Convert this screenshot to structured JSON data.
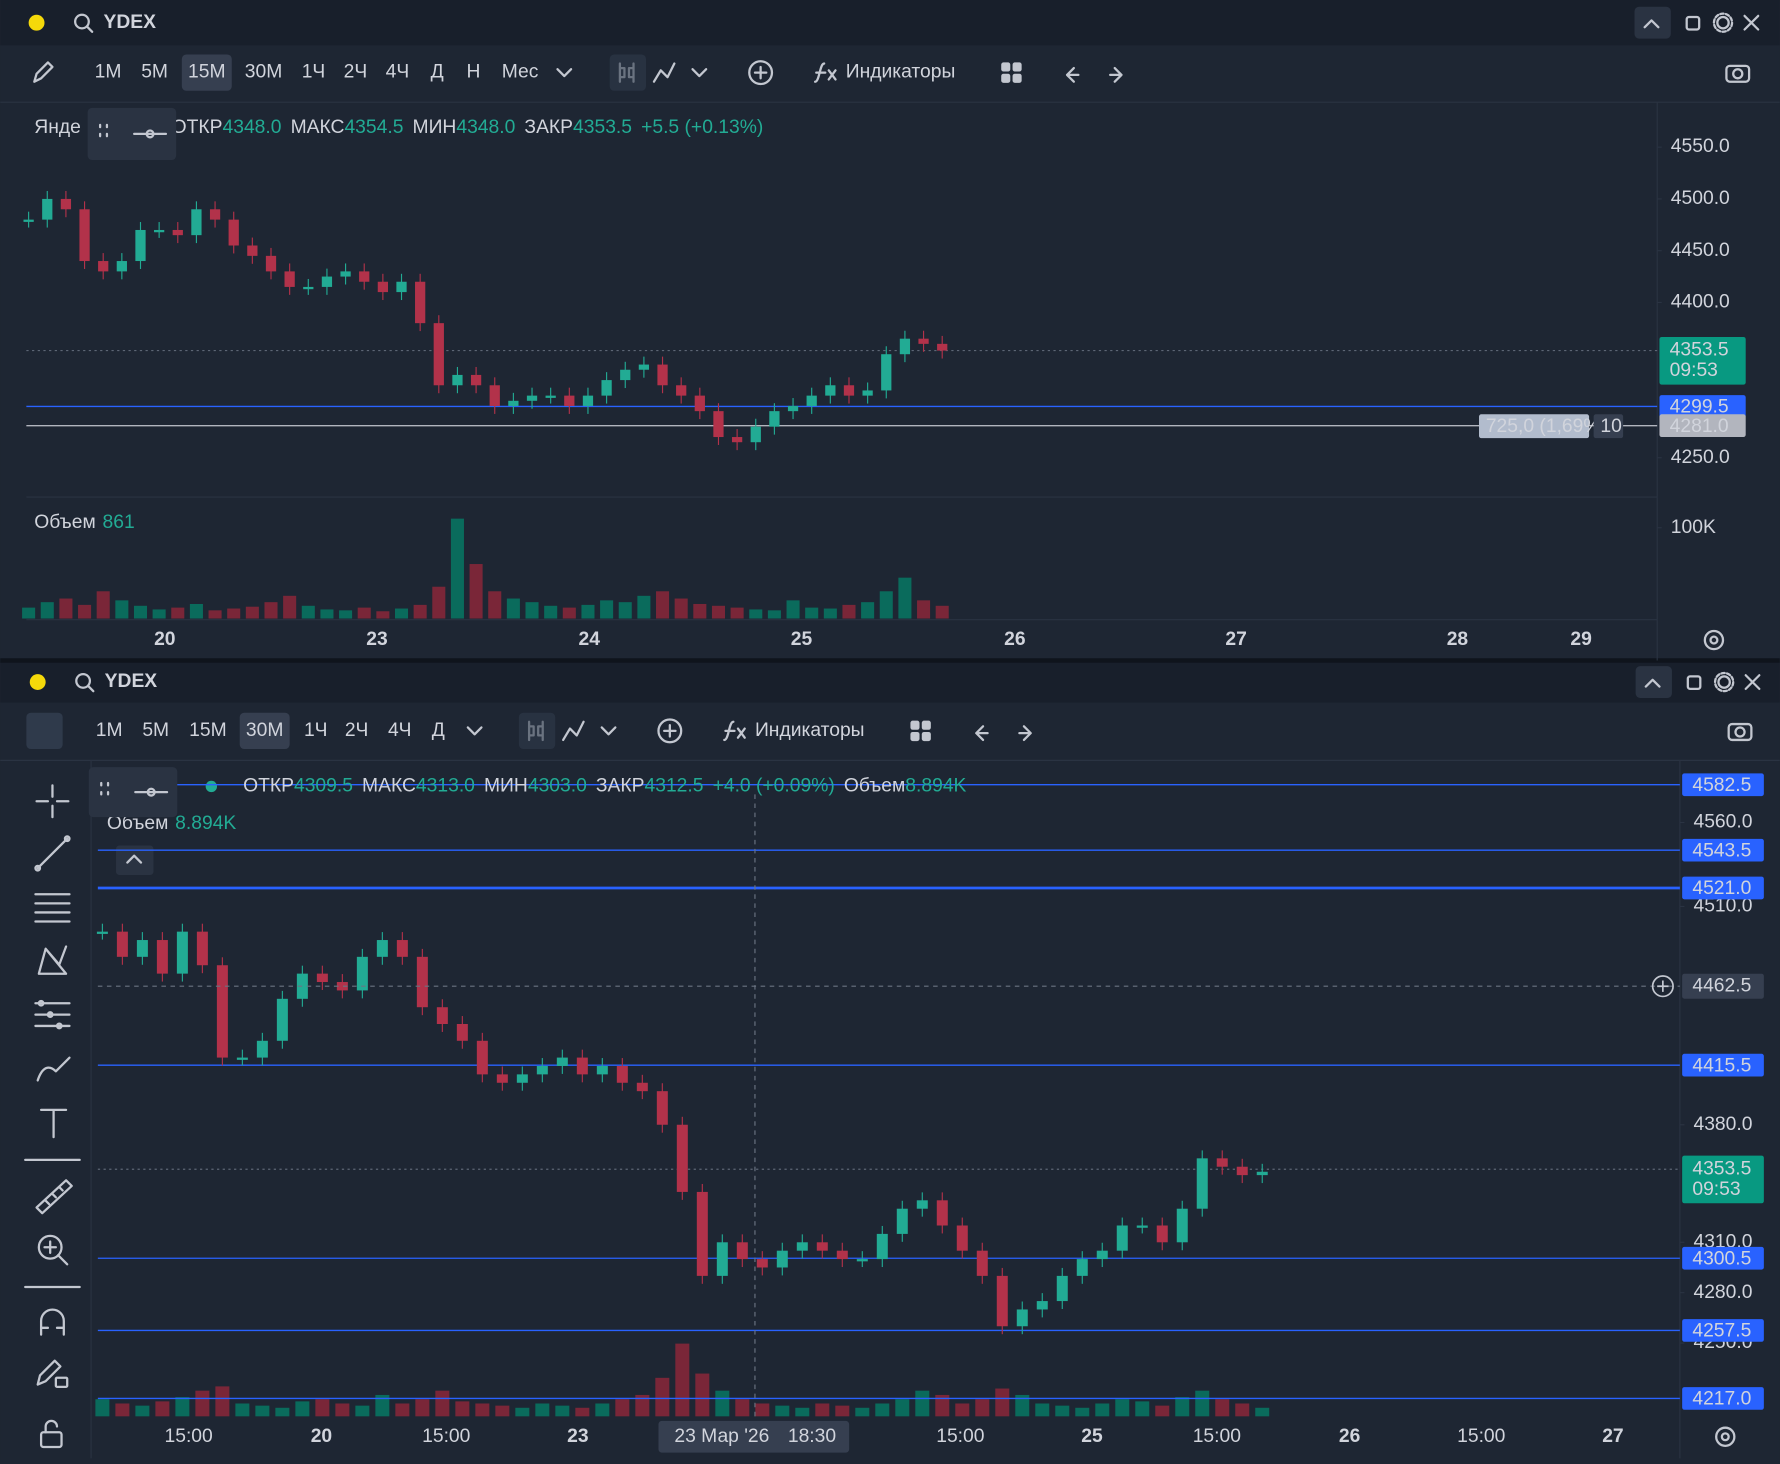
{
  "panels": [
    {
      "symbol": "YDEX",
      "timeframes": [
        "1М",
        "5М",
        "15М",
        "30М",
        "1Ч",
        "2Ч",
        "4Ч",
        "Д",
        "Н",
        "Мес"
      ],
      "active_timeframe": "15М",
      "indicators": "Индикаторы",
      "legend_name": "Янде",
      "ohlc": [
        {
          "label": "ОТКР",
          "value": "4348.0"
        },
        {
          "label": "МАКС",
          "value": "4354.5"
        },
        {
          "label": "МИН",
          "value": "4348.0"
        },
        {
          "label": "ЗАКР",
          "value": "4353.5"
        }
      ],
      "change": "+5.5 (+0.13%)",
      "ylim": [
        4212,
        4588
      ],
      "yticks": [
        {
          "value": 4550,
          "label": "4550.0"
        },
        {
          "value": 4500,
          "label": "4500.0"
        },
        {
          "value": 4450,
          "label": "4450.0"
        },
        {
          "value": 4400,
          "label": "4400.0"
        },
        {
          "value": 4250,
          "label": "4250.0"
        }
      ],
      "price_lines": [
        {
          "value": 4299.5,
          "label": "4299.5",
          "color": "#2962ff"
        },
        {
          "value": 4281,
          "label": "4281.0",
          "color": "#b2b5be"
        }
      ],
      "current": {
        "value": 4353.5,
        "label": "4353.5",
        "countdown": "09:53"
      },
      "measure": {
        "text": "725,0 (1,69%)",
        "bars": "10"
      },
      "volume_title": "Объем",
      "volume_value": "861",
      "vlim": [
        0,
        125000
      ],
      "vticks": [
        {
          "value": 100000,
          "label": "100K"
        }
      ],
      "dates": [
        "20",
        "23",
        "24",
        "25",
        "26",
        "27",
        "28",
        "29"
      ],
      "closes": [
        4480,
        4500,
        4490,
        4440,
        4430,
        4440,
        4470,
        4470,
        4465,
        4490,
        4480,
        4455,
        4445,
        4430,
        4415,
        4415,
        4425,
        4430,
        4420,
        4410,
        4420,
        4380,
        4320,
        4330,
        4320,
        4300,
        4305,
        4310,
        4310,
        4300,
        4310,
        4325,
        4335,
        4340,
        4320,
        4310,
        4295,
        4270,
        4265,
        4280,
        4295,
        4300,
        4310,
        4320,
        4310,
        4315,
        4350,
        4365,
        4360,
        4353.5
      ],
      "volumes": [
        12000,
        18000,
        22000,
        15000,
        30000,
        20000,
        14000,
        10000,
        12000,
        16000,
        9000,
        11000,
        13000,
        18000,
        25000,
        14000,
        10000,
        9000,
        12000,
        8000,
        11000,
        15000,
        35000,
        110000,
        60000,
        30000,
        22000,
        18000,
        14000,
        12000,
        15000,
        20000,
        18000,
        25000,
        30000,
        22000,
        16000,
        14000,
        12000,
        10000,
        9000,
        20000,
        12000,
        11000,
        15000,
        18000,
        30000,
        45000,
        20000,
        14000
      ]
    },
    {
      "symbol": "YDEX",
      "timeframes": [
        "1М",
        "5М",
        "15М",
        "30М",
        "1Ч",
        "2Ч",
        "4Ч",
        "Д"
      ],
      "active_timeframe": "30М",
      "indicators": "Индикаторы",
      "ohlc": [
        {
          "label": "ОТКР",
          "value": "4309.5"
        },
        {
          "label": "МАКС",
          "value": "4313.0"
        },
        {
          "label": "МИН",
          "value": "4303.0"
        },
        {
          "label": "ЗАКР",
          "value": "4312.5"
        }
      ],
      "change": "+4.0 (+0.09%)",
      "volume_title": "Объем",
      "volume_value": "8.894K",
      "ylim": [
        4205,
        4597
      ],
      "yticks": [
        {
          "value": 4560,
          "label": "4560.0"
        },
        {
          "value": 4510,
          "label": "4510.0"
        },
        {
          "value": 4380,
          "label": "4380.0"
        },
        {
          "value": 4310,
          "label": "4310.0"
        },
        {
          "value": 4280,
          "label": "4280.0"
        },
        {
          "value": 4250,
          "label": "4250.0"
        }
      ],
      "price_lines": [
        {
          "value": 4582.5,
          "label": "4582.5",
          "color": "#2962ff"
        },
        {
          "value": 4543.5,
          "label": "4543.5",
          "color": "#2962ff"
        },
        {
          "value": 4521.0,
          "label": "4521.0",
          "color": "#2962ff"
        },
        {
          "value": 4415.5,
          "label": "4415.5",
          "color": "#2962ff"
        },
        {
          "value": 4300.5,
          "label": "4300.5",
          "color": "#2962ff"
        },
        {
          "value": 4257.5,
          "label": "4257.5",
          "color": "#2962ff"
        },
        {
          "value": 4217.0,
          "label": "4217.0",
          "color": "#2962ff"
        }
      ],
      "crosshair": {
        "value": 4462.5,
        "label": "4462.5",
        "date": "23 Мар '26",
        "time": "18:30"
      },
      "current": {
        "value": 4353.5,
        "label": "4353.5",
        "countdown": "09:53"
      },
      "vlim": [
        0,
        260000
      ],
      "dates": [
        "15:00",
        "20",
        "15:00",
        "23",
        "15:00",
        "25",
        "15:00",
        "26",
        "15:00",
        "27"
      ],
      "closes": [
        4495,
        4480,
        4490,
        4470,
        4495,
        4475,
        4420,
        4420,
        4430,
        4455,
        4470,
        4465,
        4460,
        4480,
        4490,
        4480,
        4450,
        4440,
        4430,
        4410,
        4405,
        4410,
        4415,
        4420,
        4410,
        4415,
        4405,
        4400,
        4380,
        4340,
        4290,
        4310,
        4300,
        4295,
        4305,
        4310,
        4305,
        4300,
        4300,
        4315,
        4330,
        4335,
        4320,
        4305,
        4290,
        4260,
        4270,
        4275,
        4290,
        4300,
        4305,
        4320,
        4320,
        4310,
        4330,
        4360,
        4355,
        4350,
        4352
      ],
      "volumes": [
        40000,
        30000,
        25000,
        35000,
        45000,
        60000,
        70000,
        30000,
        25000,
        20000,
        35000,
        40000,
        30000,
        25000,
        50000,
        30000,
        40000,
        60000,
        35000,
        30000,
        25000,
        20000,
        30000,
        25000,
        20000,
        30000,
        40000,
        50000,
        90000,
        170000,
        100000,
        60000,
        40000,
        30000,
        25000,
        20000,
        30000,
        25000,
        20000,
        30000,
        40000,
        60000,
        50000,
        30000,
        40000,
        65000,
        50000,
        30000,
        25000,
        20000,
        30000,
        40000,
        35000,
        25000,
        45000,
        60000,
        40000,
        30000,
        20000
      ]
    }
  ]
}
